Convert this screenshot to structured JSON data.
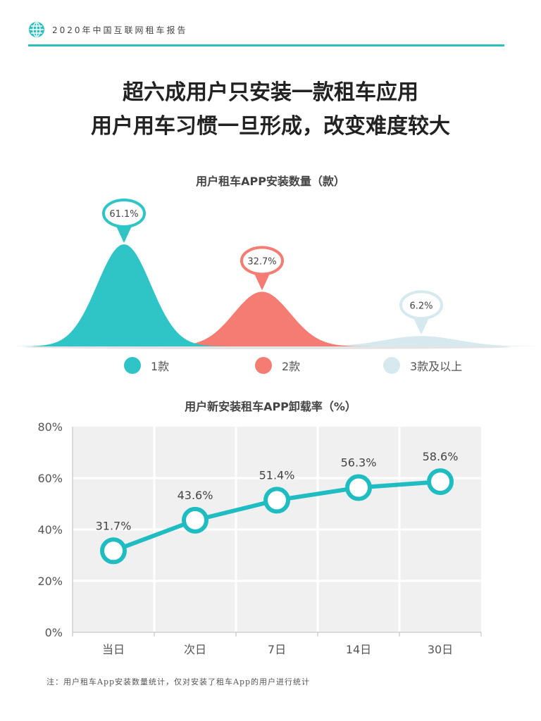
{
  "header": {
    "report_title": "2020年中国互联网租车报告",
    "accent_color": "#2dbfbf"
  },
  "headline": {
    "line1": "超六成用户只安装一款租车应用",
    "line2": "用户用车习惯一旦形成，改变难度较大"
  },
  "chart_data": [
    {
      "type": "area",
      "title": "用户租车APP安装数量（款）",
      "categories": [
        "1款",
        "2款",
        "3款及以上"
      ],
      "values": [
        61.1,
        32.7,
        6.2
      ],
      "value_labels": [
        "61.1%",
        "32.7%",
        "6.2%"
      ],
      "colors": [
        "#2fc4c6",
        "#f47c72",
        "#d5e9ef"
      ],
      "legend_position": "bottom"
    },
    {
      "type": "line",
      "title": "用户新安装租车APP卸载率（%）",
      "categories": [
        "当日",
        "次日",
        "7日",
        "14日",
        "30日"
      ],
      "values": [
        31.7,
        43.6,
        51.4,
        56.3,
        58.6
      ],
      "value_labels": [
        "31.7%",
        "43.6%",
        "51.4%",
        "56.3%",
        "58.6%"
      ],
      "ylim": [
        0,
        80
      ],
      "yticks": [
        "0%",
        "20%",
        "40%",
        "60%",
        "80%"
      ],
      "grid": true,
      "color": "#1fbdc1",
      "background": "#f0f0f0"
    }
  ],
  "footnote": "注：用户租车App安装数量统计，仅对安装了租车App的用户进行统计"
}
